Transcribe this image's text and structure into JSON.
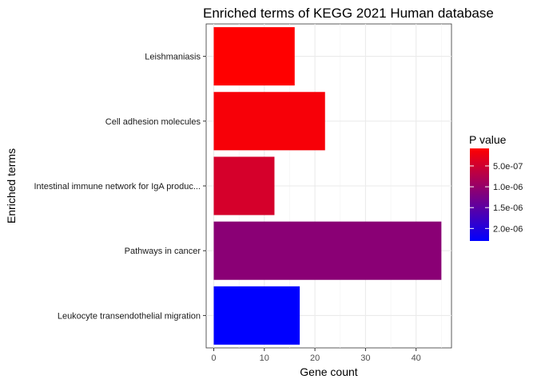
{
  "chart_data": {
    "type": "bar",
    "orientation": "horizontal",
    "title": "Enriched terms of KEGG 2021 Human database",
    "xlabel": "Gene count",
    "ylabel": "Enriched terms",
    "categories": [
      "Leishmaniasis",
      "Cell adhesion molecules",
      "Intestinal immune network for IgA produc...",
      "Pathways in cancer",
      "Leukocyte transendothelial migration"
    ],
    "values": [
      16,
      22,
      12,
      45,
      17
    ],
    "p_values": [
      8e-08,
      1.5e-07,
      4.5e-07,
      1.1e-06,
      2.3e-06
    ],
    "xlim": [
      -1.5,
      47
    ],
    "xticks": [
      0,
      10,
      20,
      30,
      40
    ],
    "grid": true,
    "legend": {
      "title": "P value",
      "position": "right",
      "p_range": [
        8e-08,
        2.3e-06
      ],
      "ticks": [
        {
          "value": 5e-07,
          "label": "5.0e-07"
        },
        {
          "value": 1e-06,
          "label": "1.0e-06"
        },
        {
          "value": 1.5e-06,
          "label": "1.5e-06"
        },
        {
          "value": 2e-06,
          "label": "2.0e-06"
        }
      ],
      "color_low_p": "#ff0000",
      "color_high_p": "#0000ff"
    }
  }
}
